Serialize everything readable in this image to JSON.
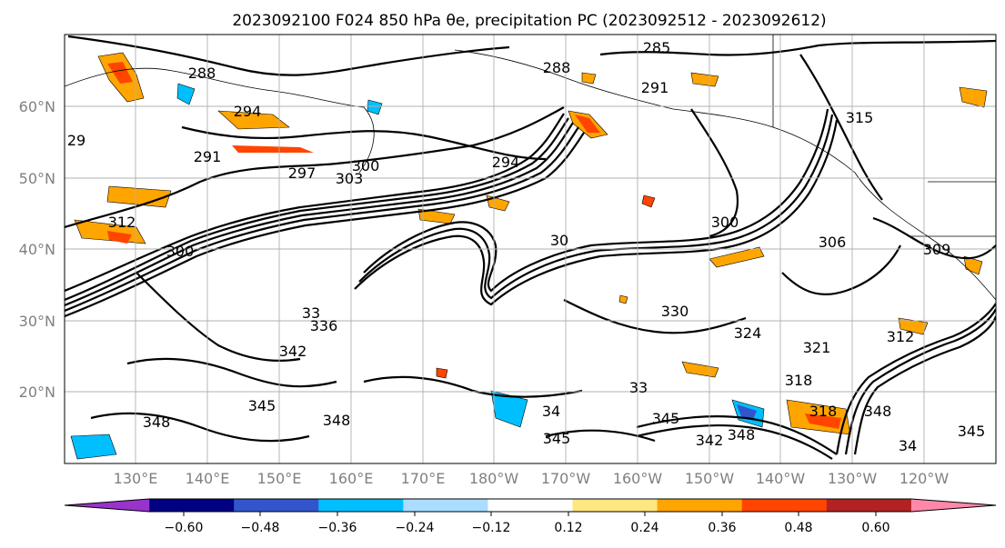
{
  "title": "2023092100 F024 850 hPa θe, precipitation PC (2023092512 - 2023092612)",
  "map": {
    "lat_ticks": [
      "60°N",
      "50°N",
      "40°N",
      "30°N",
      "20°N"
    ],
    "lon_ticks": [
      "130°E",
      "140°E",
      "150°E",
      "160°E",
      "170°E",
      "180°W",
      "170°W",
      "160°W",
      "150°W",
      "140°W",
      "130°W",
      "120°W"
    ],
    "contour_labels": [
      "285",
      "288",
      "288",
      "291",
      "291",
      "294",
      "294",
      "297",
      "300",
      "303",
      "29",
      "312",
      "300",
      "30",
      "300",
      "306",
      "309",
      "312",
      "315",
      "318",
      "321",
      "324",
      "330",
      "33",
      "336",
      "342",
      "345",
      "345",
      "345",
      "348",
      "348",
      "348",
      "33",
      "34",
      "345",
      "342",
      "318",
      "348",
      "34"
    ]
  },
  "colorbar": {
    "ticks": [
      "−0.60",
      "−0.48",
      "−0.36",
      "−0.24",
      "−0.12",
      "0.12",
      "0.24",
      "0.36",
      "0.48",
      "0.60"
    ],
    "colors": [
      "#9933cc",
      "#000080",
      "#3355cc",
      "#00bfff",
      "#aaddff",
      "#ffffff",
      "#ffe680",
      "#ffa500",
      "#ff4500",
      "#b22222",
      "#ff88aa"
    ]
  }
}
